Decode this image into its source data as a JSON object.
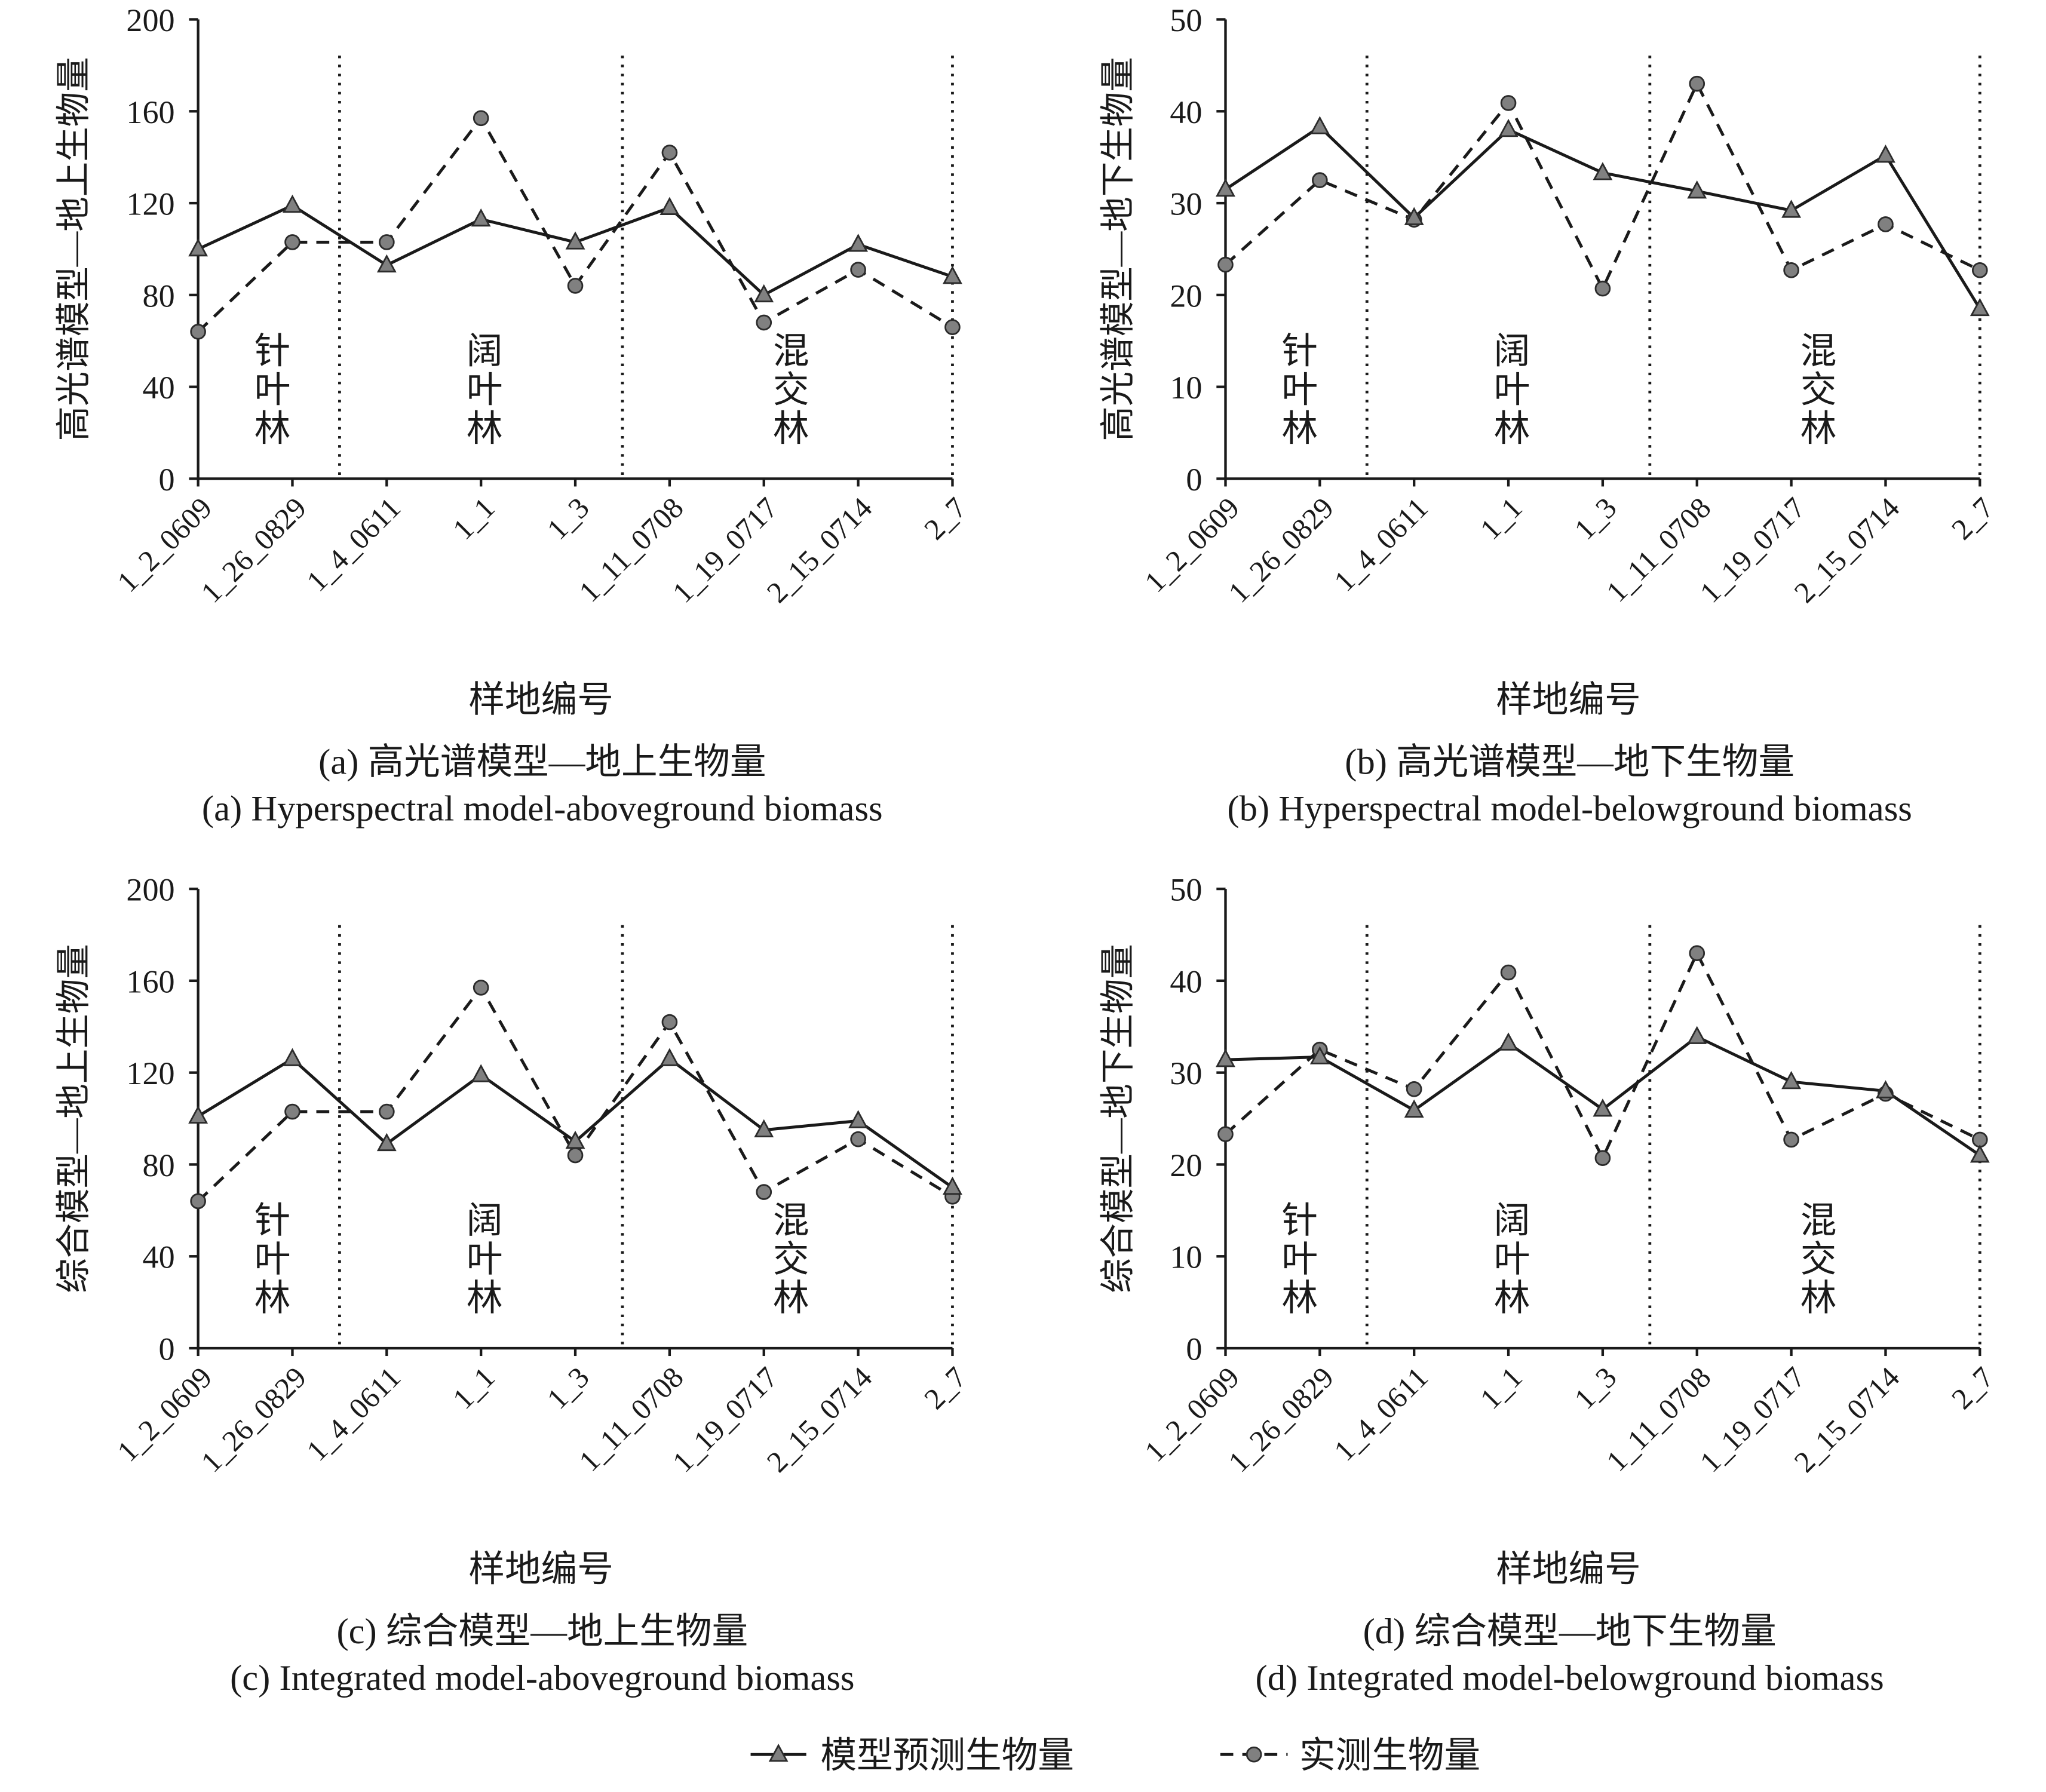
{
  "legend": {
    "predicted": "模型预测生物量",
    "measured": "实测生物量"
  },
  "colors": {
    "line": "#1a1a1a",
    "marker_fill": "#808080",
    "marker_stroke": "#2b2b2b"
  },
  "chart_data": [
    {
      "type": "line",
      "title": "(a) 高光谱模型—地上生物量",
      "subtitle": "(a) Hyperspectral model-aboveground biomass",
      "xlabel": "样地编号",
      "ylabel": "高光谱模型—地上生物量",
      "ylim": [
        0,
        200
      ],
      "yticks": [
        0,
        40,
        80,
        120,
        160,
        200
      ],
      "categories": [
        "1_2_0609",
        "1_26_0829",
        "1_4_0611",
        "1_1",
        "1_3",
        "1_11_0708",
        "1_19_0717",
        "2_15_0714",
        "2_7"
      ],
      "series": {
        "predicted": [
          100,
          119,
          93,
          113,
          103,
          118,
          80,
          102,
          88
        ],
        "measured": [
          64,
          103,
          103,
          157,
          84,
          142,
          68,
          91,
          66
        ]
      },
      "groups": [
        {
          "label": "针叶林",
          "count": 2
        },
        {
          "label": "阔叶林",
          "count": 3
        },
        {
          "label": "混交林",
          "count": 4
        }
      ]
    },
    {
      "type": "line",
      "title": "(b) 高光谱模型—地下生物量",
      "subtitle": "(b) Hyperspectral model-belowground biomass",
      "xlabel": "样地编号",
      "ylabel": "高光谱模型—地下生物量",
      "ylim": [
        0,
        50
      ],
      "yticks": [
        0,
        10,
        20,
        30,
        40,
        50
      ],
      "categories": [
        "1_2_0609",
        "1_26_0829",
        "1_4_0611",
        "1_1",
        "1_3",
        "1_11_0708",
        "1_19_0717",
        "2_15_0714",
        "2_7"
      ],
      "series": {
        "predicted": [
          31.5,
          38.3,
          28.4,
          38,
          33.3,
          31.3,
          29.2,
          35.2,
          18.5
        ],
        "measured": [
          23.3,
          32.5,
          28.2,
          40.9,
          20.7,
          43,
          22.7,
          27.7,
          22.7
        ]
      },
      "groups": [
        {
          "label": "针叶林",
          "count": 2
        },
        {
          "label": "阔叶林",
          "count": 3
        },
        {
          "label": "混交林",
          "count": 4
        }
      ]
    },
    {
      "type": "line",
      "title": "(c) 综合模型—地上生物量",
      "subtitle": "(c) Integrated model-aboveground biomass",
      "xlabel": "样地编号",
      "ylabel": "综合模型—地上生物量",
      "ylim": [
        0,
        200
      ],
      "yticks": [
        0,
        40,
        80,
        120,
        160,
        200
      ],
      "categories": [
        "1_2_0609",
        "1_26_0829",
        "1_4_0611",
        "1_1",
        "1_3",
        "1_11_0708",
        "1_19_0717",
        "2_15_0714",
        "2_7"
      ],
      "series": {
        "predicted": [
          101,
          126,
          89,
          119,
          90,
          126,
          95,
          99,
          70
        ],
        "measured": [
          64,
          103,
          103,
          157,
          84,
          142,
          68,
          91,
          66
        ]
      },
      "groups": [
        {
          "label": "针叶林",
          "count": 2
        },
        {
          "label": "阔叶林",
          "count": 3
        },
        {
          "label": "混交林",
          "count": 4
        }
      ]
    },
    {
      "type": "line",
      "title": "(d) 综合模型—地下生物量",
      "subtitle": "(d) Integrated model-belowground biomass",
      "xlabel": "样地编号",
      "ylabel": "综合模型—地下生物量",
      "ylim": [
        0,
        50
      ],
      "yticks": [
        0,
        10,
        20,
        30,
        40,
        50
      ],
      "categories": [
        "1_2_0609",
        "1_26_0829",
        "1_4_0611",
        "1_1",
        "1_3",
        "1_11_0708",
        "1_19_0717",
        "2_15_0714",
        "2_7"
      ],
      "series": {
        "predicted": [
          31.4,
          31.7,
          25.9,
          33.2,
          26,
          33.9,
          29,
          28,
          21
        ],
        "measured": [
          23.3,
          32.5,
          28.2,
          40.9,
          20.7,
          43,
          22.7,
          27.7,
          22.7
        ]
      },
      "groups": [
        {
          "label": "针叶林",
          "count": 2
        },
        {
          "label": "阔叶林",
          "count": 3
        },
        {
          "label": "混交林",
          "count": 4
        }
      ]
    }
  ]
}
